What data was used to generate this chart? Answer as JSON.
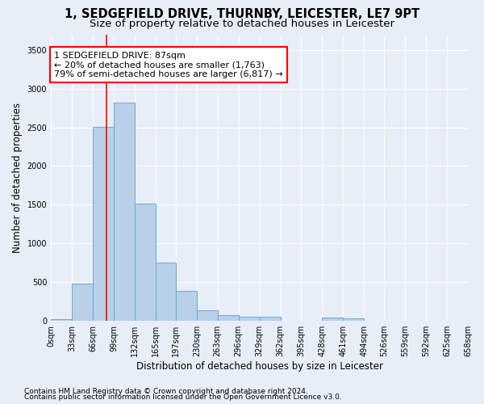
{
  "title": "1, SEDGEFIELD DRIVE, THURNBY, LEICESTER, LE7 9PT",
  "subtitle": "Size of property relative to detached houses in Leicester",
  "xlabel": "Distribution of detached houses by size in Leicester",
  "ylabel": "Number of detached properties",
  "bar_color": "#b8d0e8",
  "bar_edge_color": "#6aaad4",
  "background_color": "#e8eef8",
  "grid_color": "#ffffff",
  "annotation_line1": "1 SEDGEFIELD DRIVE: 87sqm",
  "annotation_line2": "← 20% of detached houses are smaller (1,763)",
  "annotation_line3": "79% of semi-detached houses are larger (6,817) →",
  "annotation_box_color": "#ffffff",
  "annotation_box_edge_color": "red",
  "vline_x": 87,
  "vline_color": "red",
  "bin_edges": [
    0,
    33,
    66,
    99,
    132,
    165,
    197,
    230,
    263,
    296,
    329,
    362,
    395,
    428,
    461,
    494,
    526,
    559,
    592,
    625,
    658
  ],
  "bar_heights": [
    20,
    480,
    2510,
    2820,
    1510,
    750,
    390,
    140,
    75,
    55,
    55,
    0,
    0,
    45,
    30,
    0,
    0,
    0,
    0,
    0
  ],
  "tick_labels": [
    "0sqm",
    "33sqm",
    "66sqm",
    "99sqm",
    "132sqm",
    "165sqm",
    "197sqm",
    "230sqm",
    "263sqm",
    "296sqm",
    "329sqm",
    "362sqm",
    "395sqm",
    "428sqm",
    "461sqm",
    "494sqm",
    "526sqm",
    "559sqm",
    "592sqm",
    "625sqm",
    "658sqm"
  ],
  "yticks": [
    0,
    500,
    1000,
    1500,
    2000,
    2500,
    3000,
    3500
  ],
  "ylim": [
    0,
    3700
  ],
  "footnote1": "Contains HM Land Registry data © Crown copyright and database right 2024.",
  "footnote2": "Contains public sector information licensed under the Open Government Licence v3.0.",
  "title_fontsize": 10.5,
  "subtitle_fontsize": 9.5,
  "axis_label_fontsize": 8.5,
  "tick_fontsize": 7,
  "footnote_fontsize": 6.5,
  "annotation_fontsize": 8
}
